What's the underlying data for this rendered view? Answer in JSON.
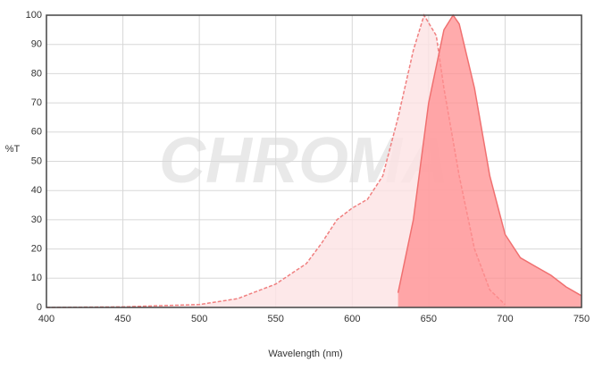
{
  "chart_data": {
    "type": "area",
    "watermark": "CHROMA",
    "x_label": "Wavelength (nm)",
    "y_label": "%T",
    "xlim": [
      400,
      750
    ],
    "xticks": [
      400,
      450,
      500,
      550,
      600,
      650,
      700,
      750
    ],
    "ylim": [
      0,
      100
    ],
    "yticks": [
      0,
      10,
      20,
      30,
      40,
      50,
      60,
      70,
      80,
      90,
      100
    ],
    "grid": true,
    "series": [
      {
        "color": "#f08080",
        "fill": "#fde2e4",
        "dashed": true,
        "x": [
          400,
          450,
          500,
          525,
          550,
          570,
          580,
          590,
          600,
          610,
          620,
          630,
          640,
          647,
          655,
          660,
          670,
          680,
          690,
          700
        ],
        "values": [
          0,
          0.2,
          1,
          3,
          8,
          15,
          22,
          30,
          34,
          37,
          45,
          65,
          88,
          100,
          93,
          75,
          45,
          20,
          6,
          1
        ]
      },
      {
        "color": "#f07070",
        "fill": "#ff8f90",
        "dashed": false,
        "x": [
          630,
          640,
          650,
          660,
          666,
          670,
          680,
          690,
          700,
          710,
          720,
          730,
          740,
          750
        ],
        "values": [
          5,
          30,
          70,
          95,
          100,
          97,
          75,
          45,
          25,
          17,
          14,
          11,
          7,
          4
        ]
      }
    ]
  }
}
